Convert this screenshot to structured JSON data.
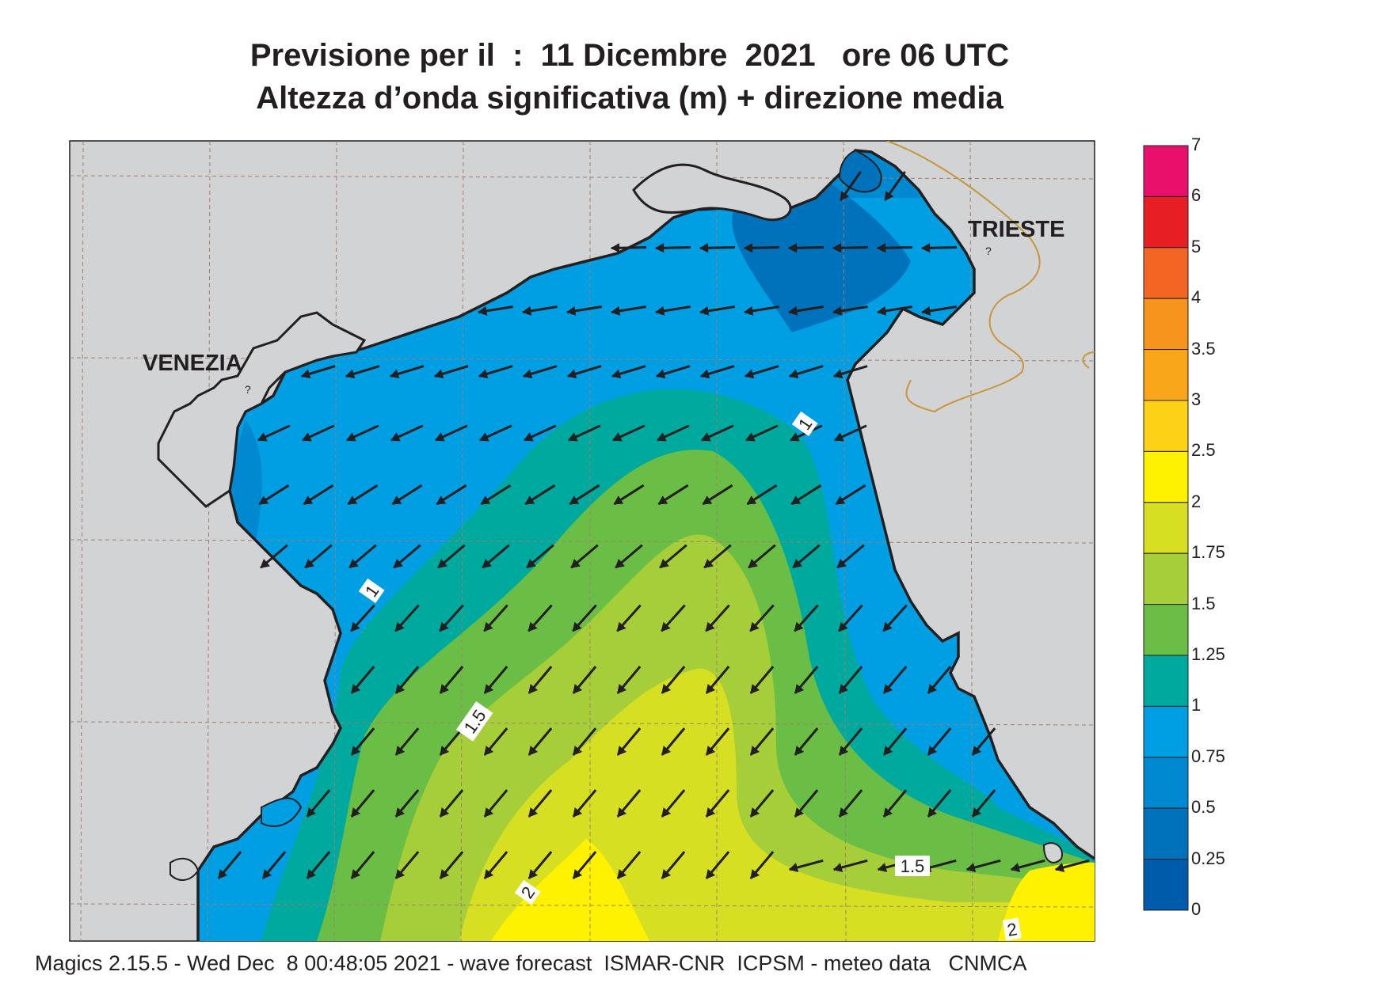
{
  "title": {
    "line1": "Previsione per il  :  11 Dicembre  2021   ore 06 UTC",
    "line2": "Altezza d’onda significativa (m) + direzione media"
  },
  "cities": {
    "venezia": "VENEZIA",
    "trieste": "TRIESTE"
  },
  "contour_labels": [
    {
      "text": "1"
    },
    {
      "text": "1"
    },
    {
      "text": "1.5"
    },
    {
      "text": "1.5"
    },
    {
      "text": "2"
    },
    {
      "text": "2"
    }
  ],
  "legend": {
    "levels": [
      "7",
      "6",
      "5",
      "4",
      "3.5",
      "3",
      "2.5",
      "2",
      "1.75",
      "1.5",
      "1.25",
      "1",
      "0.75",
      "0.5",
      "0.25",
      "0"
    ],
    "colors": [
      "#e8106a",
      "#e81e25",
      "#f26522",
      "#f7941d",
      "#faa61a",
      "#fcd116",
      "#fff200",
      "#d7df23",
      "#a6ce39",
      "#6abd45",
      "#00a99d",
      "#009fe3",
      "#0089d0",
      "#0072bc",
      "#005baa"
    ]
  },
  "footer": "Magics 2.15.5 - Wed Dec  8 00:48:05 2021 - wave forecast  ISMAR-CNR  ICPSM - meteo data   CNMCA",
  "icons": [
    "wave-direction-arrow-icon"
  ]
}
